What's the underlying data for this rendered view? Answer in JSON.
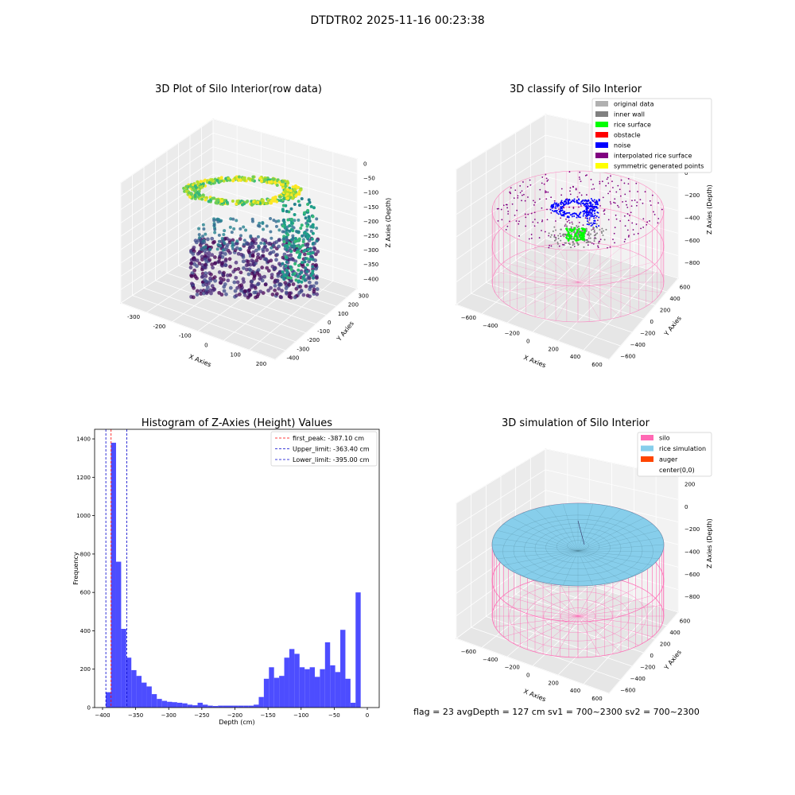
{
  "suptitle": "DTDTR02 2025-11-16 00:23:38",
  "footer": "flag = 23  avgDepth = 127 cm  sv1 = 700~2300  sv2 = 700~2300",
  "chart_data": [
    {
      "type": "scatter",
      "title": "3D Plot of Silo Interior(row data)",
      "projection": "3d",
      "xlabel": "X Axies",
      "ylabel": "Y Axies",
      "zlabel": "Z Axies (Depth)",
      "xticks": [
        "-300",
        "-200",
        "-100",
        "0",
        "100",
        "200"
      ],
      "yticks": [
        "-400",
        "-300",
        "-200",
        "-100",
        "0",
        "100",
        "200",
        "300"
      ],
      "zticks": [
        "0",
        "−50",
        "−100",
        "−150",
        "−200",
        "−250",
        "−300",
        "−350",
        "−400"
      ],
      "xlim": [
        -330,
        230
      ],
      "ylim": [
        -420,
        320
      ],
      "zlim": [
        -420,
        10
      ],
      "colormap": "viridis"
    },
    {
      "type": "scatter",
      "title": "3D classify of Silo Interior",
      "projection": "3d",
      "xlabel": "X Axies",
      "ylabel": "Y Axies",
      "zlabel": "Z Axies (Depth)",
      "xticks": [
        "−600",
        "−400",
        "−200",
        "0",
        "200",
        "400",
        "600"
      ],
      "yticks": [
        "−600",
        "−400",
        "−200",
        "0",
        "200",
        "400",
        "600"
      ],
      "zticks": [
        "200",
        "0",
        "−200",
        "−400",
        "−600",
        "−800"
      ],
      "legend_placement": "top-right",
      "legend": [
        {
          "label": "original data",
          "color": "#b0b0b0"
        },
        {
          "label": "inner wall",
          "color": "#808080"
        },
        {
          "label": "rice surface",
          "color": "#00ff00"
        },
        {
          "label": "obstacle",
          "color": "#ff0000"
        },
        {
          "label": "noise",
          "color": "#0000ff"
        },
        {
          "label": "interpolated rice surface",
          "color": "#800080"
        },
        {
          "label": "symmetric generated points",
          "color": "#ffff00"
        }
      ]
    },
    {
      "type": "bar",
      "subtype": "histogram",
      "title": "Histogram of Z-Axies (Height) Values",
      "xlabel": "Depth (cm)",
      "ylabel": "Frequency",
      "xlim": [
        -412,
        18
      ],
      "ylim": [
        0,
        1450
      ],
      "xticks": [
        "−400",
        "−350",
        "−300",
        "−250",
        "−200",
        "−150",
        "−100",
        "−50",
        "0"
      ],
      "yticks": [
        "0",
        "200",
        "400",
        "600",
        "800",
        "1000",
        "1200",
        "1400"
      ],
      "bar_color": "#4d4dff",
      "bin_width": 7.7,
      "bins": [
        [
          -395,
          80
        ],
        [
          -387.3,
          1380
        ],
        [
          -379.6,
          760
        ],
        [
          -371.9,
          410
        ],
        [
          -364.2,
          260
        ],
        [
          -356.5,
          195
        ],
        [
          -348.8,
          165
        ],
        [
          -341.1,
          130
        ],
        [
          -333.4,
          110
        ],
        [
          -325.7,
          70
        ],
        [
          -318,
          45
        ],
        [
          -310.3,
          35
        ],
        [
          -302.6,
          30
        ],
        [
          -294.9,
          28
        ],
        [
          -287.2,
          25
        ],
        [
          -279.5,
          22
        ],
        [
          -271.8,
          15
        ],
        [
          -264.1,
          12
        ],
        [
          -256.4,
          25
        ],
        [
          -248.7,
          15
        ],
        [
          -241,
          10
        ],
        [
          -233.3,
          8
        ],
        [
          -225.6,
          10
        ],
        [
          -217.9,
          10
        ],
        [
          -210.2,
          10
        ],
        [
          -202.5,
          10
        ],
        [
          -194.8,
          10
        ],
        [
          -187.1,
          10
        ],
        [
          -179.4,
          10
        ],
        [
          -171.7,
          15
        ],
        [
          -164,
          55
        ],
        [
          -156.3,
          150
        ],
        [
          -148.6,
          210
        ],
        [
          -140.9,
          155
        ],
        [
          -133.2,
          165
        ],
        [
          -125.5,
          260
        ],
        [
          -117.8,
          305
        ],
        [
          -110.1,
          280
        ],
        [
          -102.4,
          210
        ],
        [
          -94.7,
          200
        ],
        [
          -87,
          210
        ],
        [
          -79.3,
          160
        ],
        [
          -71.6,
          200
        ],
        [
          -63.9,
          340
        ],
        [
          -56.2,
          220
        ],
        [
          -48.5,
          185
        ],
        [
          -40.8,
          405
        ],
        [
          -33.1,
          150
        ],
        [
          -25.4,
          25
        ],
        [
          -17.7,
          600
        ]
      ],
      "lines": [
        {
          "label": "first_peak: -387.10 cm",
          "x": -387.1,
          "color": "#ff0000"
        },
        {
          "label": "Upper_limit: -363.40 cm",
          "x": -363.4,
          "color": "#0000cc"
        },
        {
          "label": "Lower_limit: -395.00 cm",
          "x": -395.0,
          "color": "#0000cc"
        }
      ],
      "legend_placement": "top-right"
    },
    {
      "type": "surface",
      "title": "3D simulation of Silo Interior",
      "projection": "3d",
      "xlabel": "X Axies",
      "ylabel": "Y Axies",
      "zlabel": "Z Axies (Depth)",
      "xticks": [
        "−600",
        "−400",
        "−200",
        "0",
        "200",
        "400",
        "600"
      ],
      "yticks": [
        "−600",
        "−400",
        "−200",
        "0",
        "200",
        "400",
        "600"
      ],
      "zticks": [
        "200",
        "0",
        "−200",
        "−400",
        "−600",
        "−800"
      ],
      "legend_placement": "top-right",
      "legend": [
        {
          "label": "silo",
          "color": "#ff69b4"
        },
        {
          "label": "rice simulation",
          "color": "#87ceeb"
        },
        {
          "label": "auger",
          "color": "#ff4500"
        },
        {
          "label": "center(0,0)",
          "color": ""
        }
      ]
    }
  ]
}
